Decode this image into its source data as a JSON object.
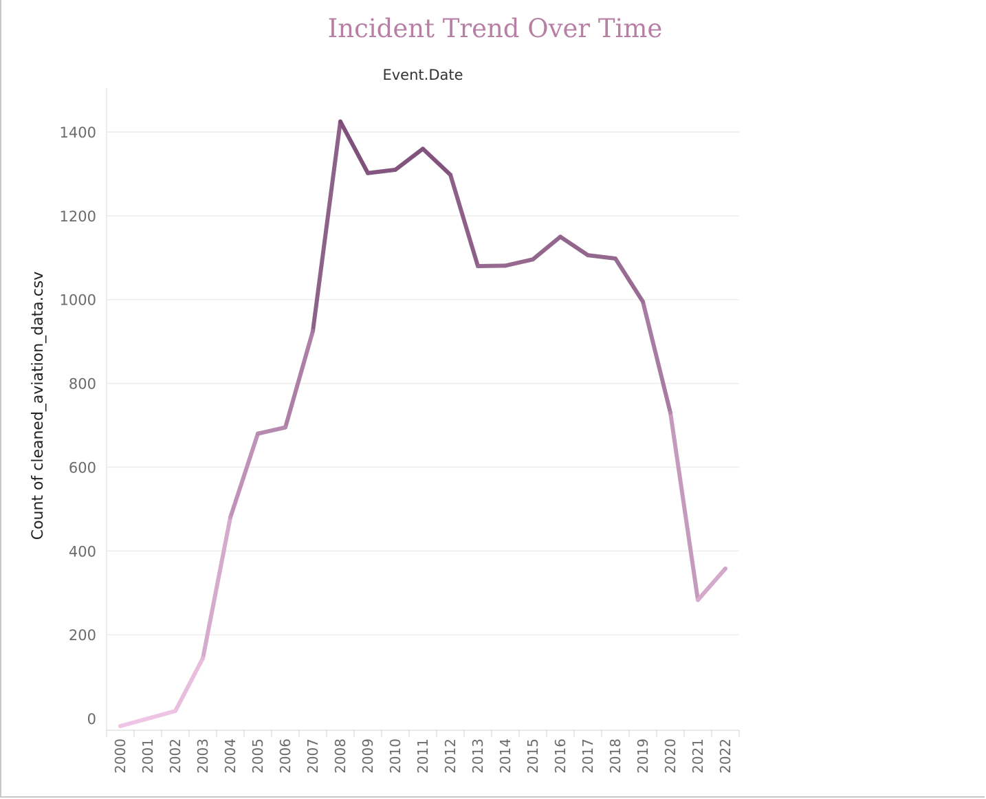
{
  "chart_data": {
    "type": "line",
    "title": "Incident Trend Over Time",
    "column_header": "Event.Date",
    "ylabel": "Count of cleaned_aviation_data.csv",
    "categories": [
      "2000",
      "2001",
      "2002",
      "2003",
      "2004",
      "2005",
      "2006",
      "2007",
      "2008",
      "2009",
      "2010",
      "2011",
      "2012",
      "2013",
      "2014",
      "2015",
      "2016",
      "2017",
      "2018",
      "2019",
      "2020",
      "2021",
      "2022"
    ],
    "yticks": [
      "0",
      "200",
      "400",
      "600",
      "800",
      "1000",
      "1200",
      "1400"
    ],
    "ylim": [
      -30,
      1500
    ],
    "grid": true,
    "legend": "none",
    "series": [
      {
        "values": [
          -18,
          0,
          18,
          144,
          480,
          680,
          695,
          925,
          1425,
          1302,
          1310,
          1360,
          1298,
          1080,
          1081,
          1096,
          1150,
          1106,
          1098,
          995,
          730,
          283,
          358
        ]
      }
    ],
    "color_scale": {
      "low": "#f0c6e6",
      "high": "#7a4c76"
    }
  }
}
